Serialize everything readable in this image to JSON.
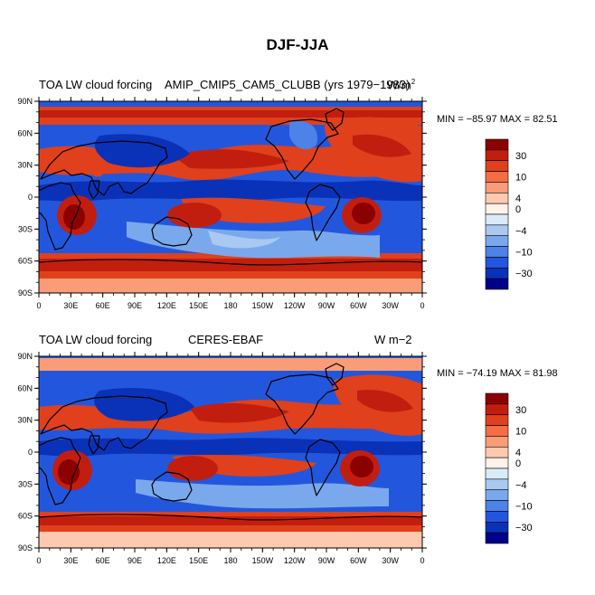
{
  "figure": {
    "title": "DJF-JJA"
  },
  "panels": [
    {
      "left_label": "TOA LW cloud forcing",
      "center_label": "AMIP_CMIP5_CAM5_CLUBB (yrs 1979−1983)",
      "units_label": "W/m",
      "units_superscript": "2",
      "stats": "MIN = −85.97 MAX =  82.51"
    },
    {
      "left_label": "TOA LW cloud forcing",
      "center_label": "CERES-EBAF",
      "units_label": "W m−2",
      "stats": "MIN = −74.19 MAX =  81.98"
    }
  ],
  "chart_data": {
    "type": "heatmap",
    "projection": "cylindrical equidistant, global",
    "x_ticks": [
      "0",
      "30E",
      "60E",
      "90E",
      "120E",
      "150E",
      "180",
      "150W",
      "120W",
      "90W",
      "60W",
      "30W",
      "0"
    ],
    "y_ticks": [
      "90N",
      "60N",
      "30N",
      "0",
      "30S",
      "60S",
      "90S"
    ],
    "colorbar_labels": [
      "30",
      "10",
      "4",
      "0",
      "−4",
      "−10",
      "−30"
    ],
    "colorbar_colors": [
      "#8b0000",
      "#c21e0f",
      "#e0401c",
      "#f46d43",
      "#fa9c78",
      "#fdcab0",
      "#fff2ea",
      "#dbeaf7",
      "#a9c9f0",
      "#7aa8ec",
      "#4d82e6",
      "#2257dd",
      "#0a32b8",
      "#00008b"
    ],
    "colorbar_levels": [
      30,
      10,
      4,
      0,
      -4,
      -10,
      -30
    ]
  }
}
